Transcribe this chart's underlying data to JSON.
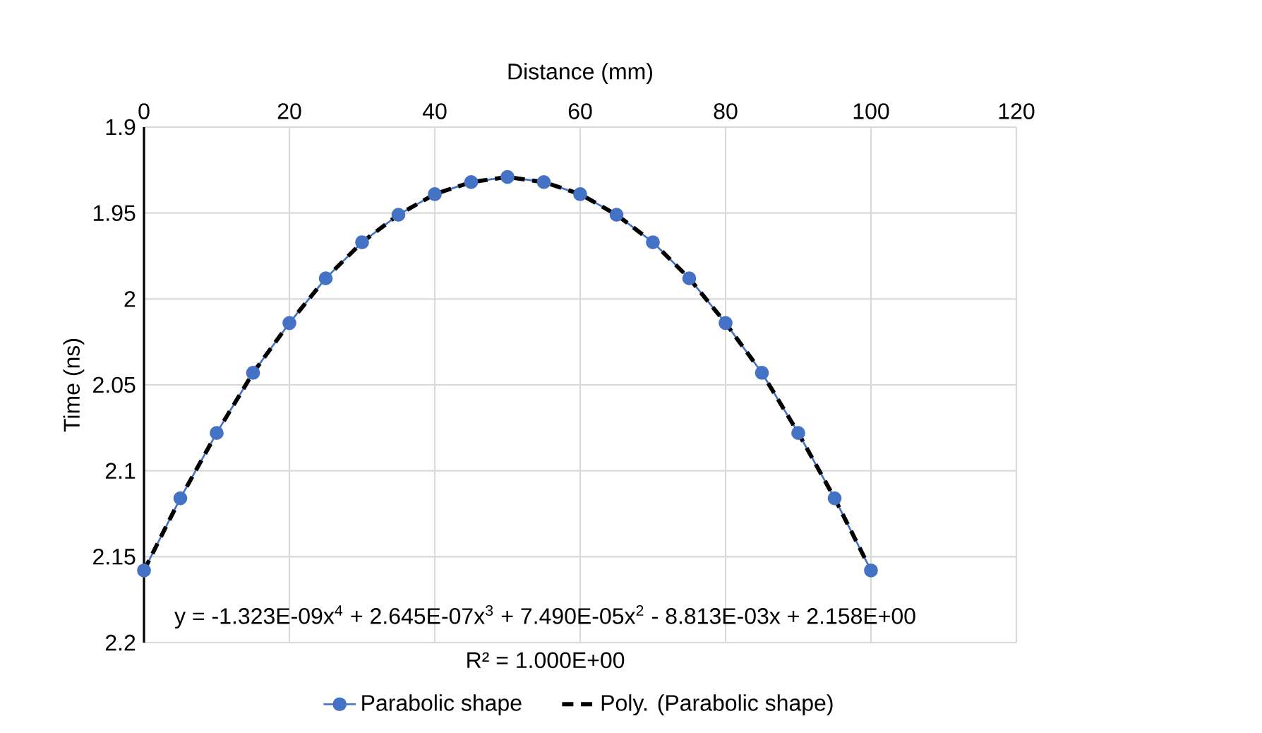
{
  "chart_data": {
    "type": "line",
    "xlabel": "Distance (mm)",
    "ylabel": "Time (ns)",
    "xlim": [
      0,
      120
    ],
    "xticks": [
      0,
      20,
      40,
      60,
      80,
      100,
      120
    ],
    "ylim": [
      2.2,
      1.9
    ],
    "yticks": [
      1.9,
      1.95,
      2,
      2.05,
      2.1,
      2.15,
      2.2
    ],
    "grid": true,
    "legend": "bottom",
    "series": [
      {
        "name": "Parabolic shape",
        "color": "#4472c4",
        "marker": "circle",
        "line_style": "solid",
        "x": [
          0,
          5,
          10,
          15,
          20,
          25,
          30,
          35,
          40,
          45,
          50,
          55,
          60,
          65,
          70,
          75,
          80,
          85,
          90,
          95,
          100
        ],
        "values": [
          2.158,
          2.116,
          2.078,
          2.043,
          2.014,
          1.988,
          1.967,
          1.951,
          1.939,
          1.932,
          1.929,
          1.932,
          1.939,
          1.951,
          1.967,
          1.988,
          2.014,
          2.043,
          2.078,
          2.116,
          2.158
        ]
      },
      {
        "name": "Poly. (Parabolic shape)",
        "type": "line",
        "color": "#000000",
        "marker": "none",
        "line_style": "dashed",
        "x": [
          0,
          5,
          10,
          15,
          20,
          25,
          30,
          35,
          40,
          45,
          50,
          55,
          60,
          65,
          70,
          75,
          80,
          85,
          90,
          95,
          100
        ],
        "values": [
          2.158,
          2.116,
          2.078,
          2.043,
          2.014,
          1.988,
          1.967,
          1.951,
          1.939,
          1.932,
          1.929,
          1.932,
          1.939,
          1.951,
          1.967,
          1.988,
          2.014,
          2.043,
          2.078,
          2.116,
          2.158
        ]
      }
    ],
    "annotations": [
      "y = -1.323E-09x$^{4}$ + 2.645E-07x$^{3}$ + 7.490E-05x$^{2}$ - 8.813E-03x + 2.158E+00",
      "R² = 1.000E+00"
    ]
  }
}
